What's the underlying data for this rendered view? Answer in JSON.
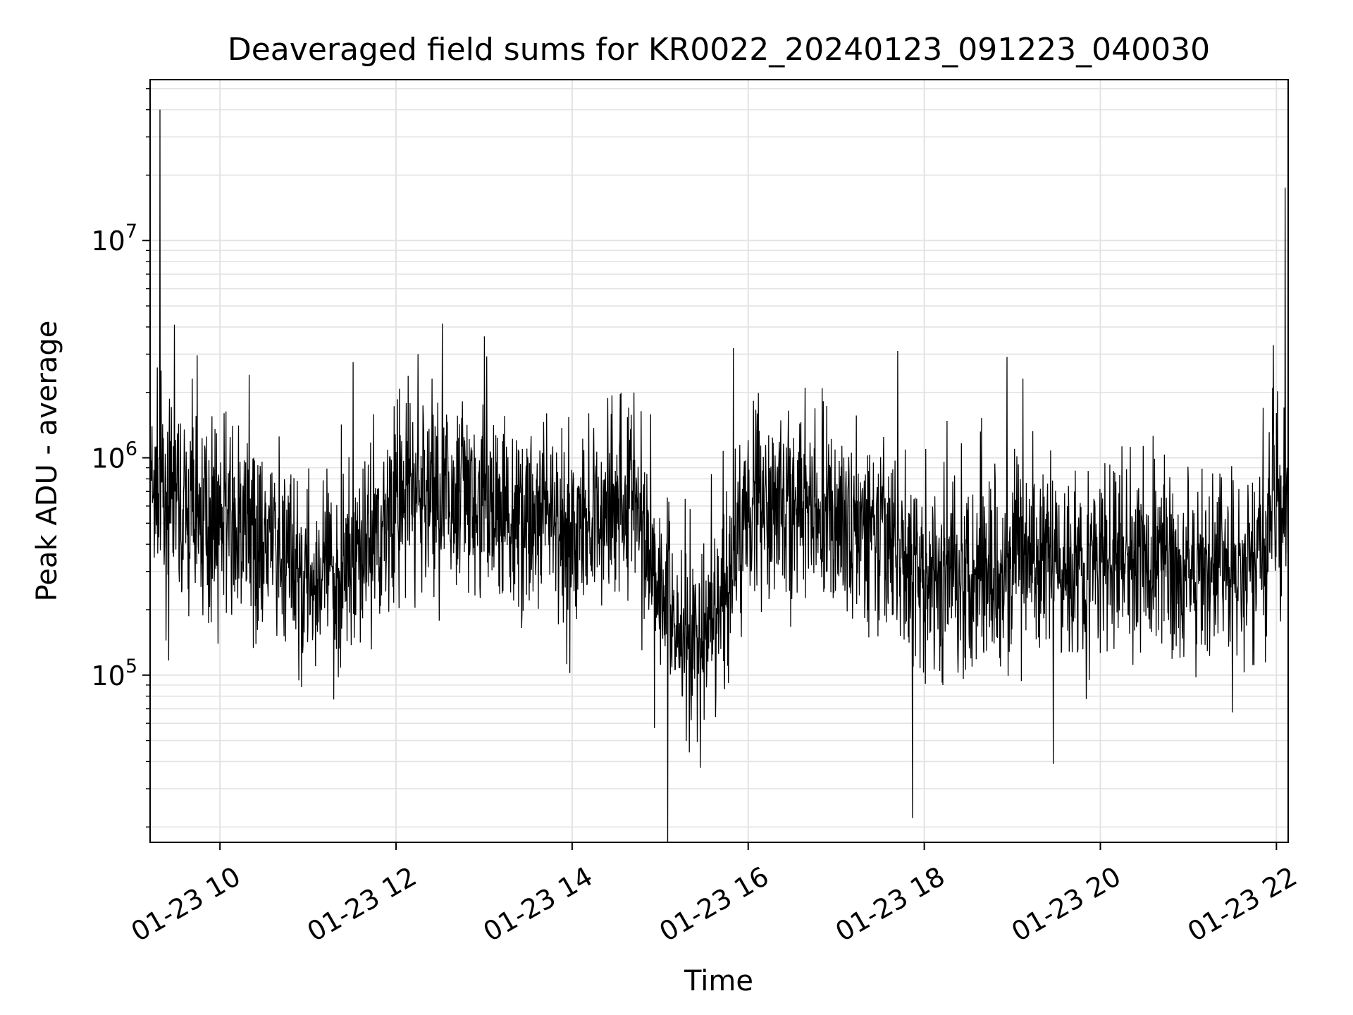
{
  "chart_data": {
    "type": "line",
    "title": "Deaveraged field sums for KR0022_20240123_091223_040030",
    "xlabel": "Time",
    "ylabel": "Peak ADU - average",
    "yscale": "log",
    "xlim": [
      "2024-01-23T09:12:23",
      "2024-01-23T22:08:00"
    ],
    "ylim": [
      17000,
      55000000
    ],
    "grid": true,
    "x_ticks": [
      {
        "x": "2024-01-23T10:00",
        "label": "01-23 10"
      },
      {
        "x": "2024-01-23T12:00",
        "label": "01-23 12"
      },
      {
        "x": "2024-01-23T14:00",
        "label": "01-23 14"
      },
      {
        "x": "2024-01-23T16:00",
        "label": "01-23 16"
      },
      {
        "x": "2024-01-23T18:00",
        "label": "01-23 18"
      },
      {
        "x": "2024-01-23T20:00",
        "label": "01-23 20"
      },
      {
        "x": "2024-01-23T22:00",
        "label": "01-23 22"
      }
    ],
    "y_ticks": [
      {
        "y": 100000,
        "base": "10",
        "exp": "5"
      },
      {
        "y": 1000000,
        "base": "10",
        "exp": "6"
      },
      {
        "y": 10000000,
        "base": "10",
        "exp": "7"
      }
    ],
    "series": [
      {
        "color": "#000000",
        "x": [
          "2024-01-23T09:12",
          "2024-01-23T09:20",
          "2024-01-23T09:30",
          "2024-01-23T09:40",
          "2024-01-23T10:00",
          "2024-01-23T10:20",
          "2024-01-23T10:40",
          "2024-01-23T11:00",
          "2024-01-23T11:20",
          "2024-01-23T11:40",
          "2024-01-23T12:00",
          "2024-01-23T12:20",
          "2024-01-23T12:40",
          "2024-01-23T13:00",
          "2024-01-23T13:20",
          "2024-01-23T13:40",
          "2024-01-23T14:00",
          "2024-01-23T14:20",
          "2024-01-23T14:40",
          "2024-01-23T15:00",
          "2024-01-23T15:20",
          "2024-01-23T15:40",
          "2024-01-23T16:00",
          "2024-01-23T16:20",
          "2024-01-23T16:40",
          "2024-01-23T17:00",
          "2024-01-23T17:20",
          "2024-01-23T17:40",
          "2024-01-23T18:00",
          "2024-01-23T18:20",
          "2024-01-23T18:40",
          "2024-01-23T19:00",
          "2024-01-23T19:20",
          "2024-01-23T19:40",
          "2024-01-23T20:00",
          "2024-01-23T20:20",
          "2024-01-23T20:40",
          "2024-01-23T21:00",
          "2024-01-23T21:20",
          "2024-01-23T21:40",
          "2024-01-23T22:00",
          "2024-01-23T22:08"
        ],
        "y": [
          700000,
          650000,
          600000,
          550000,
          520000,
          450000,
          350000,
          280000,
          300000,
          420000,
          620000,
          700000,
          650000,
          600000,
          550000,
          500000,
          480000,
          520000,
          800000,
          250000,
          140000,
          160000,
          700000,
          650000,
          600000,
          520000,
          450000,
          380000,
          280000,
          300000,
          330000,
          350000,
          340000,
          330000,
          330000,
          340000,
          350000,
          320000,
          300000,
          280000,
          600000,
          650000
        ]
      }
    ],
    "spikes": [
      {
        "x": "2024-01-23T09:19",
        "y": 40000000
      },
      {
        "x": "2024-01-23T09:29",
        "y": 4100000
      },
      {
        "x": "2024-01-23T12:15",
        "y": 3000000
      },
      {
        "x": "2024-01-23T15:50",
        "y": 3200000
      },
      {
        "x": "2024-01-23T17:42",
        "y": 3100000
      },
      {
        "x": "2024-01-23T17:52",
        "y": 22000
      },
      {
        "x": "2024-01-23T19:28",
        "y": 39000
      },
      {
        "x": "2024-01-23T21:58",
        "y": 3300000
      },
      {
        "x": "2024-01-23T22:06",
        "y": 17500000
      }
    ]
  }
}
